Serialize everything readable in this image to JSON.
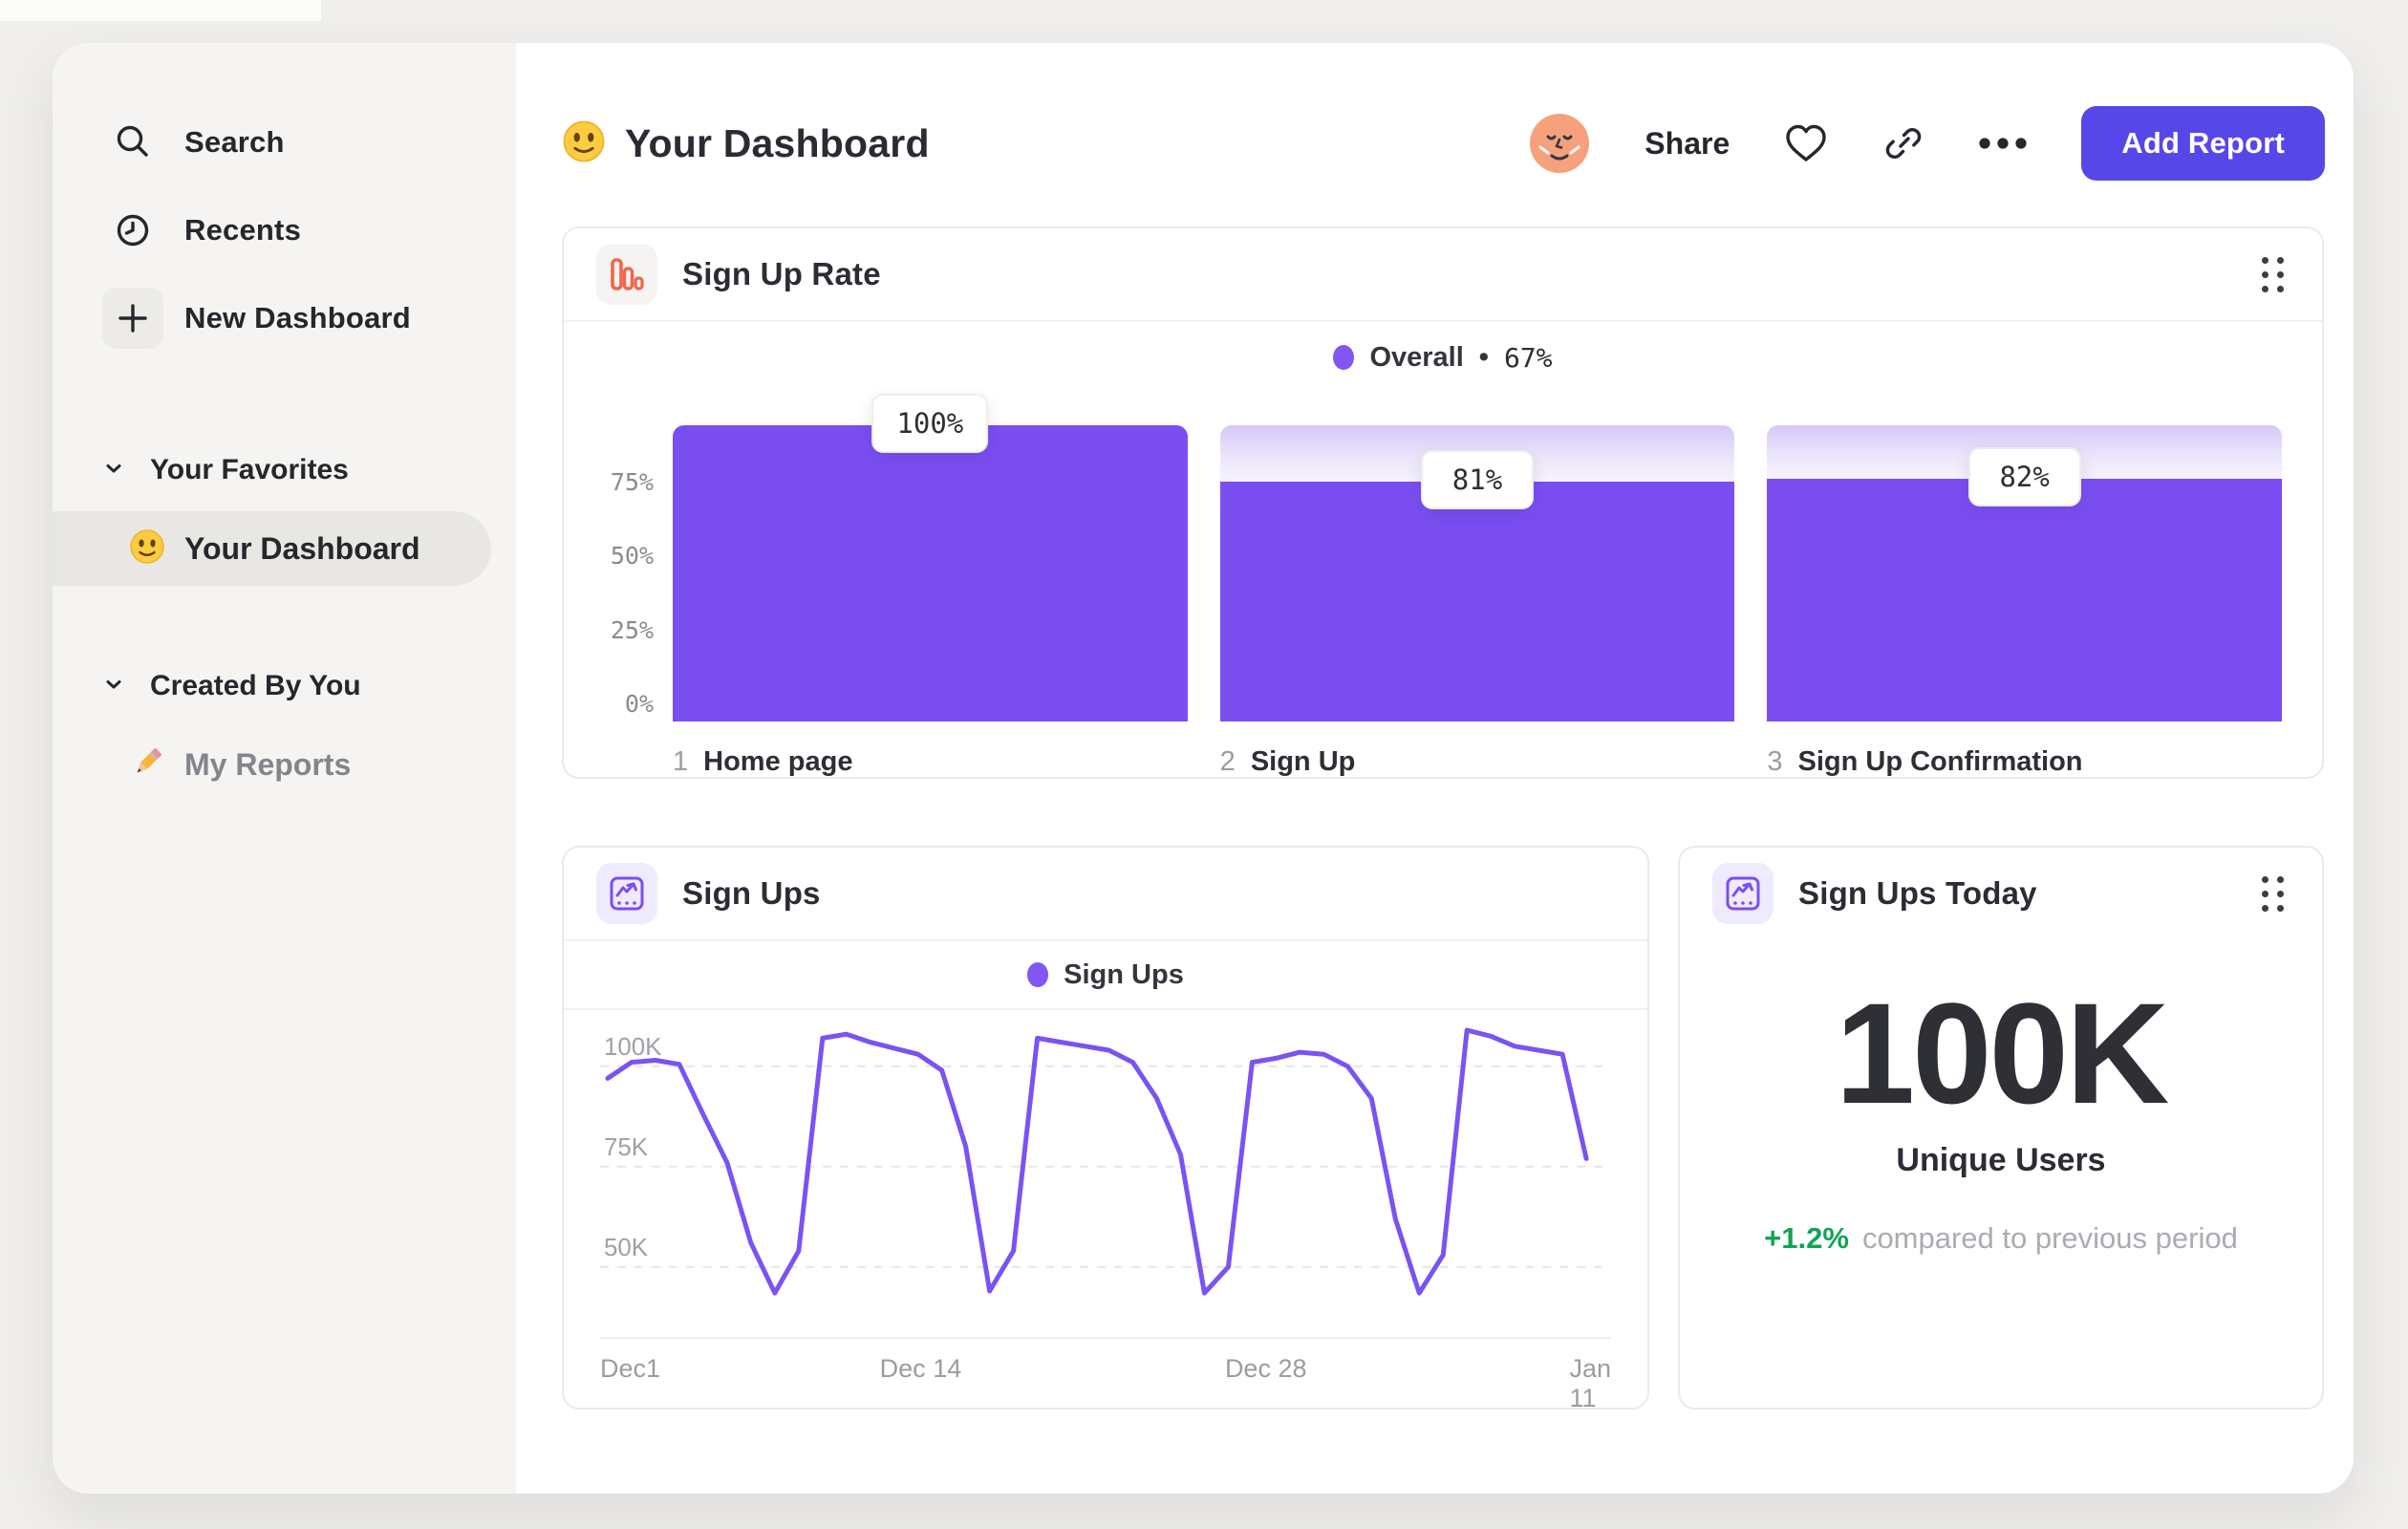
{
  "colors": {
    "accent_purple": "#7B4EF2",
    "line_purple": "#7B52F3",
    "button_indigo": "#5847E8",
    "funnel_icon_orange": "#F2654C",
    "delta_green": "#13A356",
    "sidebar_bg": "#F5F4F2",
    "outer_bg": "#EFEEEC"
  },
  "sidebar": {
    "items": [
      {
        "label": "Search",
        "icon": "search-icon"
      },
      {
        "label": "Recents",
        "icon": "clock-icon"
      },
      {
        "label": "New Dashboard",
        "icon": "plus-icon"
      }
    ],
    "sections": [
      {
        "title": "Your Favorites",
        "items": [
          {
            "label": "Your Dashboard",
            "icon": "smiley-emoji",
            "active": true
          }
        ]
      },
      {
        "title": "Created By You",
        "items": [
          {
            "label": "My Reports",
            "icon": "pencil-emoji",
            "active": false
          }
        ]
      }
    ]
  },
  "header": {
    "title": "Your Dashboard",
    "share_label": "Share",
    "add_report_label": "Add Report"
  },
  "chart_data": [
    {
      "type": "bar",
      "title": "Sign Up Rate",
      "legend": {
        "name": "Overall",
        "separator": "•",
        "value": "67%"
      },
      "indices": [
        "1",
        "2",
        "3"
      ],
      "categories": [
        "Home page",
        "Sign Up",
        "Sign Up Confirmation"
      ],
      "values": [
        100,
        81,
        82
      ],
      "value_labels": [
        "100%",
        "81%",
        "82%"
      ],
      "ylim": [
        0,
        100
      ],
      "yticks": [
        {
          "label": "75%",
          "value": 75
        },
        {
          "label": "50%",
          "value": 50
        },
        {
          "label": "25%",
          "value": 25
        },
        {
          "label": "0%",
          "value": 0
        }
      ],
      "grid": false,
      "legend_position": "top-center"
    },
    {
      "type": "line",
      "title": "Sign Ups",
      "legend": "Sign Ups",
      "x_tick_labels": [
        "Dec1",
        "Dec 14",
        "Dec 28",
        "Jan 11"
      ],
      "x_tick_days": [
        0,
        13,
        27,
        41
      ],
      "x_span_days": 41,
      "y_gridlines": [
        100,
        75,
        50
      ],
      "y_tick_labels": [
        "100K",
        "75K",
        "50K"
      ],
      "ylim": [
        34,
        114
      ],
      "unit": "K",
      "grid": "dashed-horizontal",
      "legend_position": "top-center",
      "values": [
        97,
        101,
        101.5,
        100.5,
        88,
        76,
        56,
        43.5,
        54,
        107,
        108,
        106,
        104.5,
        103,
        99,
        80,
        44,
        54,
        107,
        106,
        105,
        104,
        101,
        92,
        78,
        43.5,
        50,
        101,
        102,
        103.5,
        103,
        100,
        92,
        62,
        43.5,
        53,
        109,
        107.5,
        105,
        104,
        103,
        77
      ]
    },
    {
      "type": "stat",
      "title": "Sign Ups Today",
      "value": "100K",
      "label": "Unique Users",
      "delta": "+1.2%",
      "delta_note": "compared to previous period"
    }
  ]
}
